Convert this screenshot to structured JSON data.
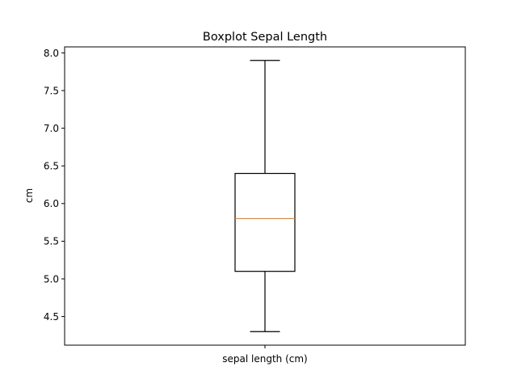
{
  "chart_data": {
    "type": "boxplot",
    "title": "Boxplot Sepal Length",
    "xlabel": "",
    "ylabel": "cm",
    "categories": [
      "sepal length (cm)"
    ],
    "series": [
      {
        "whisker_low": 4.3,
        "q1": 5.1,
        "median": 5.8,
        "q3": 6.4,
        "whisker_high": 7.9
      }
    ],
    "ylim": [
      4.12,
      8.08
    ],
    "yticks": [
      4.5,
      5.0,
      5.5,
      6.0,
      6.5,
      7.0,
      7.5,
      8.0
    ],
    "ytick_labels": [
      "4.5",
      "5.0",
      "5.5",
      "6.0",
      "6.5",
      "7.0",
      "7.5",
      "8.0"
    ],
    "grid": false,
    "colors": {
      "box": "#000000",
      "median": "#ff7f0e",
      "background": "#ffffff"
    }
  }
}
